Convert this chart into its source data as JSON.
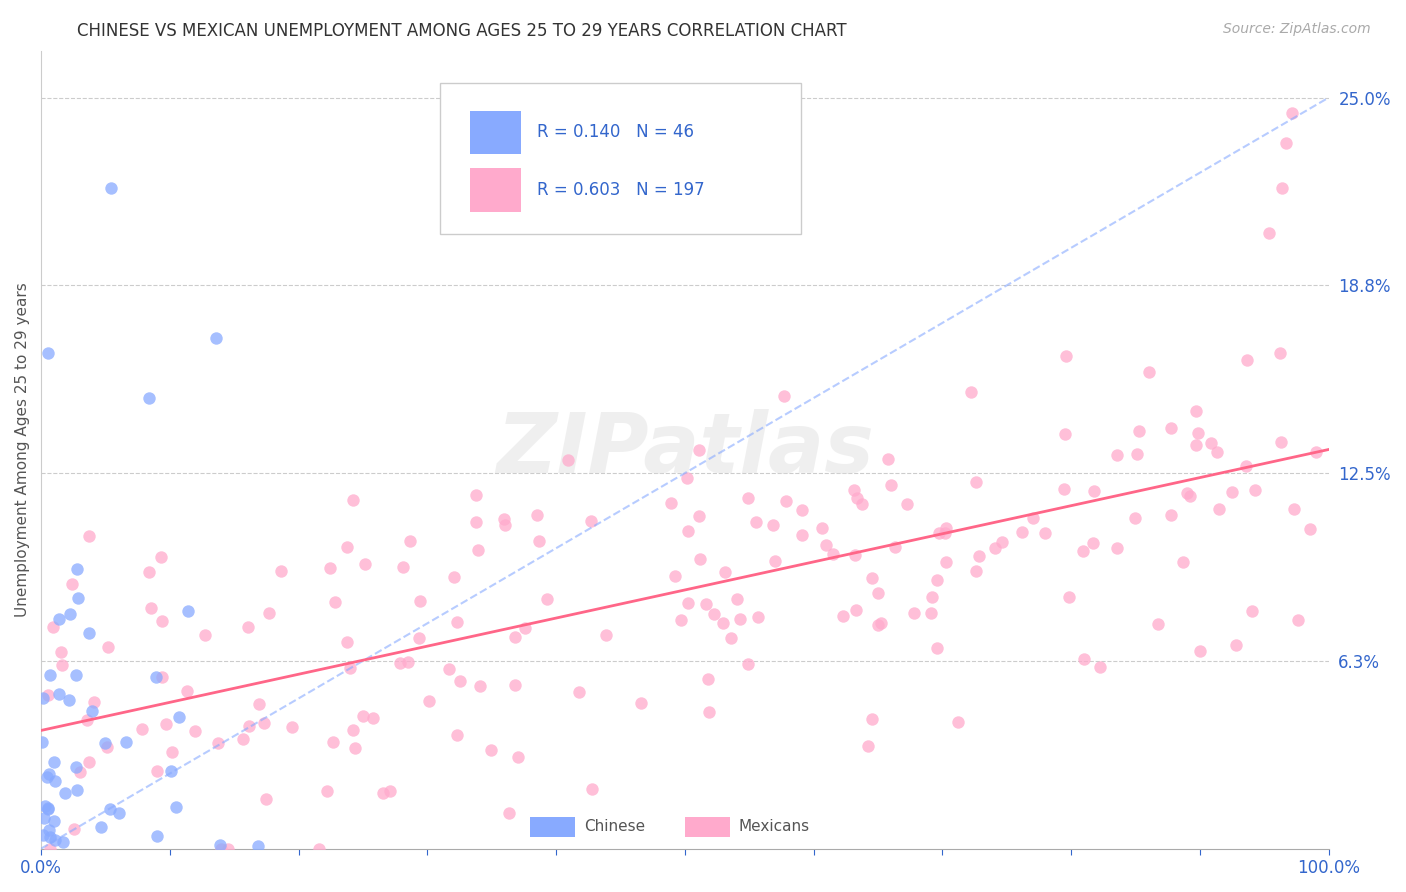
{
  "title": "CHINESE VS MEXICAN UNEMPLOYMENT AMONG AGES 25 TO 29 YEARS CORRELATION CHART",
  "source_text": "Source: ZipAtlas.com",
  "ylabel": "Unemployment Among Ages 25 to 29 years",
  "xlim": [
    0,
    100
  ],
  "ylim": [
    0,
    26.5625
  ],
  "yticks": [
    0,
    6.25,
    12.5,
    18.75,
    25.0
  ],
  "ytick_labels": [
    "",
    "6.3%",
    "12.5%",
    "18.8%",
    "25.0%"
  ],
  "xticks": [
    0,
    10,
    20,
    30,
    40,
    50,
    60,
    70,
    80,
    90,
    100
  ],
  "xtick_labels": [
    "0.0%",
    "",
    "",
    "",
    "",
    "",
    "",
    "",
    "",
    "",
    "100.0%"
  ],
  "chinese_R": 0.14,
  "chinese_N": 46,
  "mexican_R": 0.603,
  "mexican_N": 197,
  "chinese_color": "#88aaff",
  "mexican_color": "#ffaacc",
  "trend_chinese_color": "#88aaff",
  "trend_mexican_color": "#ff6688",
  "watermark": "ZIPatlas",
  "background_color": "#ffffff",
  "grid_color": "#cccccc",
  "legend_text_color": "#3366cc",
  "title_color": "#333333",
  "seed": 42
}
